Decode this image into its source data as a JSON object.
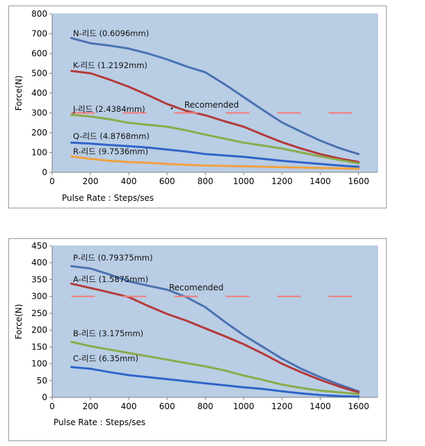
{
  "chart_data": [
    {
      "type": "line",
      "ylabel": "Force(N)",
      "xlabel": "Pulse Rate : Steps/ses",
      "xlim": [
        0,
        1700
      ],
      "ylim": [
        0,
        800
      ],
      "xticks": [
        0,
        200,
        400,
        600,
        800,
        1000,
        1200,
        1400,
        1600
      ],
      "yticks": [
        0,
        100,
        200,
        300,
        400,
        500,
        600,
        700,
        800
      ],
      "grid": false,
      "reference_line": {
        "y": 300,
        "x_start": 100,
        "x_end": 1600,
        "style": "dashed",
        "label": "Recomended",
        "color": "#f08080"
      },
      "series": [
        {
          "name": "N-리드 (0.6096mm)",
          "color": "#4a72b0",
          "x": [
            100,
            200,
            300,
            400,
            500,
            600,
            700,
            800,
            900,
            1000,
            1100,
            1200,
            1300,
            1400,
            1500,
            1600
          ],
          "y": [
            678,
            652,
            640,
            625,
            600,
            570,
            535,
            505,
            445,
            380,
            315,
            252,
            205,
            160,
            122,
            92
          ]
        },
        {
          "name": "K-리드 (1.2192mm)",
          "color": "#b33a3a",
          "x": [
            100,
            200,
            300,
            400,
            500,
            600,
            700,
            800,
            900,
            1000,
            1100,
            1200,
            1300,
            1400,
            1500,
            1600
          ],
          "y": [
            512,
            500,
            468,
            432,
            390,
            345,
            310,
            288,
            258,
            230,
            190,
            152,
            120,
            92,
            70,
            52
          ]
        },
        {
          "name": "J-리드 (2.4384mm)",
          "color": "#8aac4a",
          "x": [
            100,
            200,
            300,
            400,
            500,
            600,
            700,
            800,
            900,
            1000,
            1100,
            1200,
            1300,
            1400,
            1500,
            1600
          ],
          "y": [
            290,
            282,
            268,
            250,
            240,
            230,
            212,
            190,
            170,
            150,
            135,
            120,
            100,
            80,
            62,
            45
          ]
        },
        {
          "name": "Q-리드 (4.8768mm)",
          "color": "#2f64c8",
          "x": [
            100,
            200,
            300,
            400,
            500,
            600,
            700,
            800,
            900,
            1000,
            1100,
            1200,
            1300,
            1400,
            1500,
            1600
          ],
          "y": [
            150,
            145,
            138,
            132,
            125,
            115,
            105,
            92,
            85,
            78,
            68,
            58,
            50,
            42,
            34,
            28
          ]
        },
        {
          "name": "R-리드 (9.7536mm)",
          "color": "#f0a040",
          "x": [
            100,
            200,
            300,
            400,
            500,
            600,
            700,
            800,
            900,
            1000,
            1100,
            1200,
            1300,
            1400,
            1500,
            1600
          ],
          "y": [
            80,
            68,
            58,
            52,
            48,
            42,
            38,
            34,
            32,
            30,
            28,
            26,
            24,
            22,
            20,
            18
          ]
        }
      ]
    },
    {
      "type": "line",
      "ylabel": "Force(N)",
      "xlabel": "Pulse Rate : Steps/ses",
      "xlim": [
        0,
        1700
      ],
      "ylim": [
        0,
        450
      ],
      "xticks": [
        0,
        200,
        400,
        600,
        800,
        1000,
        1200,
        1400,
        1600
      ],
      "yticks": [
        0,
        50,
        100,
        150,
        200,
        250,
        300,
        350,
        400,
        450
      ],
      "grid": false,
      "reference_line": {
        "y": 300,
        "x_start": 100,
        "x_end": 1600,
        "style": "dashed",
        "label": "Recomended",
        "color": "#f08080"
      },
      "series": [
        {
          "name": "P-리드 (0.79375mm)",
          "color": "#4a72b0",
          "x": [
            100,
            200,
            300,
            400,
            500,
            600,
            700,
            800,
            900,
            1000,
            1100,
            1200,
            1300,
            1400,
            1500,
            1600
          ],
          "y": [
            390,
            383,
            365,
            345,
            332,
            320,
            298,
            268,
            225,
            185,
            150,
            115,
            85,
            60,
            38,
            18
          ]
        },
        {
          "name": "A-리드 (1.5875mm)",
          "color": "#b33a3a",
          "x": [
            100,
            200,
            300,
            400,
            500,
            600,
            700,
            800,
            900,
            1000,
            1100,
            1200,
            1300,
            1400,
            1500,
            1600
          ],
          "y": [
            338,
            325,
            312,
            298,
            272,
            248,
            228,
            205,
            182,
            158,
            130,
            100,
            75,
            52,
            32,
            15
          ]
        },
        {
          "name": "B-리드 (3.175mm)",
          "color": "#8aac4a",
          "x": [
            100,
            200,
            300,
            400,
            500,
            600,
            700,
            800,
            900,
            1000,
            1100,
            1200,
            1300,
            1400,
            1500,
            1600
          ],
          "y": [
            165,
            152,
            142,
            132,
            122,
            112,
            102,
            92,
            80,
            65,
            52,
            38,
            28,
            20,
            15,
            10
          ]
        },
        {
          "name": "C-리드 (6.35mm)",
          "color": "#2f64c8",
          "x": [
            100,
            200,
            300,
            400,
            500,
            600,
            700,
            800,
            900,
            1000,
            1100,
            1200,
            1300,
            1400,
            1500,
            1600
          ],
          "y": [
            90,
            85,
            75,
            66,
            60,
            54,
            48,
            42,
            36,
            30,
            25,
            18,
            12,
            7,
            4,
            2
          ]
        }
      ]
    }
  ]
}
